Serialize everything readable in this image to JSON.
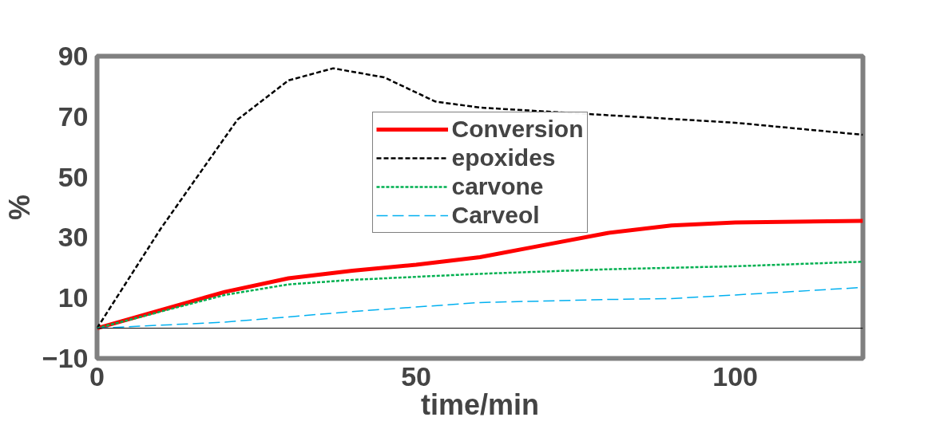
{
  "chart_data": {
    "type": "line",
    "xlabel": "time/min",
    "ylabel": "%",
    "xlim": [
      0,
      120
    ],
    "ylim": [
      -10,
      90
    ],
    "xticks": [
      0,
      50,
      100
    ],
    "yticks": [
      -10,
      10,
      30,
      50,
      70,
      90
    ],
    "grid": false,
    "legend": "top",
    "ref_lines": [
      {
        "axis": "y",
        "value": 0,
        "color": "#000000"
      }
    ],
    "series": [
      {
        "name": "Conversion",
        "color": "#ff0000",
        "line_style": "solid",
        "x": [
          0,
          10,
          20,
          30,
          40,
          50,
          60,
          70,
          80,
          90,
          100,
          120
        ],
        "values": [
          0,
          6,
          12,
          16.5,
          19,
          21,
          23.5,
          27.5,
          31.5,
          34,
          35,
          35.5
        ]
      },
      {
        "name": "epoxides",
        "color": "#000000",
        "line_style": "dashed",
        "x": [
          0,
          10,
          20,
          22,
          30,
          37,
          45,
          53,
          60,
          80,
          100,
          120
        ],
        "values": [
          0,
          33,
          63,
          69,
          82,
          86,
          83,
          75,
          73,
          70.5,
          68,
          64
        ]
      },
      {
        "name": "carvone",
        "color": "#00b050",
        "line_style": "dotted",
        "x": [
          0,
          10,
          20,
          30,
          40,
          50,
          60,
          80,
          100,
          120
        ],
        "values": [
          0,
          5.5,
          11,
          14.5,
          16,
          17,
          18,
          19.5,
          20.5,
          22
        ]
      },
      {
        "name": "Carveol",
        "color": "#00b0f0",
        "line_style": "longdash",
        "x": [
          0,
          20,
          40,
          60,
          80,
          90,
          100,
          120
        ],
        "values": [
          0,
          2,
          5.5,
          8.5,
          9.5,
          9.8,
          11,
          13.5
        ]
      }
    ]
  }
}
